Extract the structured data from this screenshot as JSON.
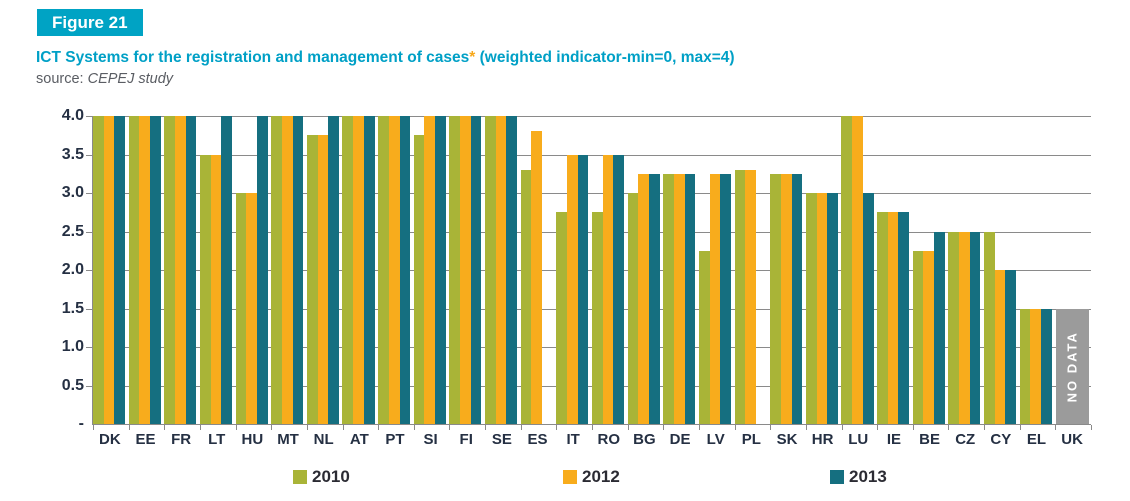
{
  "figure": {
    "label": "Figure 21"
  },
  "title": {
    "main": "ICT Systems for the registration and management of cases",
    "asterisk": "*",
    "suffix": " (weighted indicator-min=0, max=4)"
  },
  "source": {
    "prefix": "source: ",
    "name": "CEPEJ study"
  },
  "colors": {
    "accent_teal": "#00a3c4",
    "title_teal": "#00a0c6",
    "asterisk_orange": "#f7a81b",
    "series_2010_green": "#a9b437",
    "series_2012_orange": "#f8ac1c",
    "series_2013_teal": "#156f80",
    "no_data_gray": "#9b9b9b",
    "grid_gray": "#8a8a8a",
    "axis_text": "#253043",
    "source_gray": "#5a5d63"
  },
  "chart_data": {
    "type": "bar",
    "title": "ICT Systems for the registration and management of cases* (weighted indicator-min=0, max=4)",
    "categories": [
      "DK",
      "EE",
      "FR",
      "LT",
      "HU",
      "MT",
      "NL",
      "AT",
      "PT",
      "SI",
      "FI",
      "SE",
      "ES",
      "IT",
      "RO",
      "BG",
      "DE",
      "LV",
      "PL",
      "SK",
      "HR",
      "LU",
      "IE",
      "BE",
      "CZ",
      "CY",
      "EL",
      "UK"
    ],
    "series": [
      {
        "name": "2010",
        "color": "#a9b437",
        "values": [
          4.0,
          4.0,
          4.0,
          3.5,
          3.0,
          4.0,
          3.75,
          4.0,
          4.0,
          3.75,
          4.0,
          4.0,
          3.3,
          2.75,
          2.75,
          3.0,
          3.25,
          2.25,
          3.3,
          3.25,
          3.0,
          4.0,
          2.75,
          2.25,
          2.5,
          2.5,
          1.5,
          null
        ]
      },
      {
        "name": "2012",
        "color": "#f8ac1c",
        "values": [
          4.0,
          4.0,
          4.0,
          3.5,
          3.0,
          4.0,
          3.75,
          4.0,
          4.0,
          4.0,
          4.0,
          4.0,
          3.8,
          3.5,
          3.5,
          3.25,
          3.25,
          3.25,
          3.3,
          3.25,
          3.0,
          4.0,
          2.75,
          2.25,
          2.5,
          2.0,
          1.5,
          null
        ]
      },
      {
        "name": "2013",
        "color": "#156f80",
        "values": [
          4.0,
          4.0,
          4.0,
          4.0,
          4.0,
          4.0,
          4.0,
          4.0,
          4.0,
          4.0,
          4.0,
          4.0,
          null,
          3.5,
          3.5,
          3.25,
          3.25,
          3.25,
          null,
          3.25,
          3.0,
          3.0,
          2.75,
          2.5,
          2.5,
          2.0,
          1.5,
          null
        ]
      }
    ],
    "no_data": {
      "category": "UK",
      "label": "NO DATA",
      "bar_height": 1.5,
      "color": "#9b9b9b"
    },
    "ylim": [
      0,
      4
    ],
    "ytick_step": 0.5,
    "ytick_labels": [
      "4.0",
      "3.5",
      "3.0",
      "2.5",
      "2.0",
      "1.5",
      "1.0",
      "0.5",
      "-"
    ],
    "grid": true,
    "legend_position": "bottom"
  },
  "legend": {
    "items": [
      {
        "label": "2010"
      },
      {
        "label": "2012"
      },
      {
        "label": "2013"
      }
    ]
  }
}
